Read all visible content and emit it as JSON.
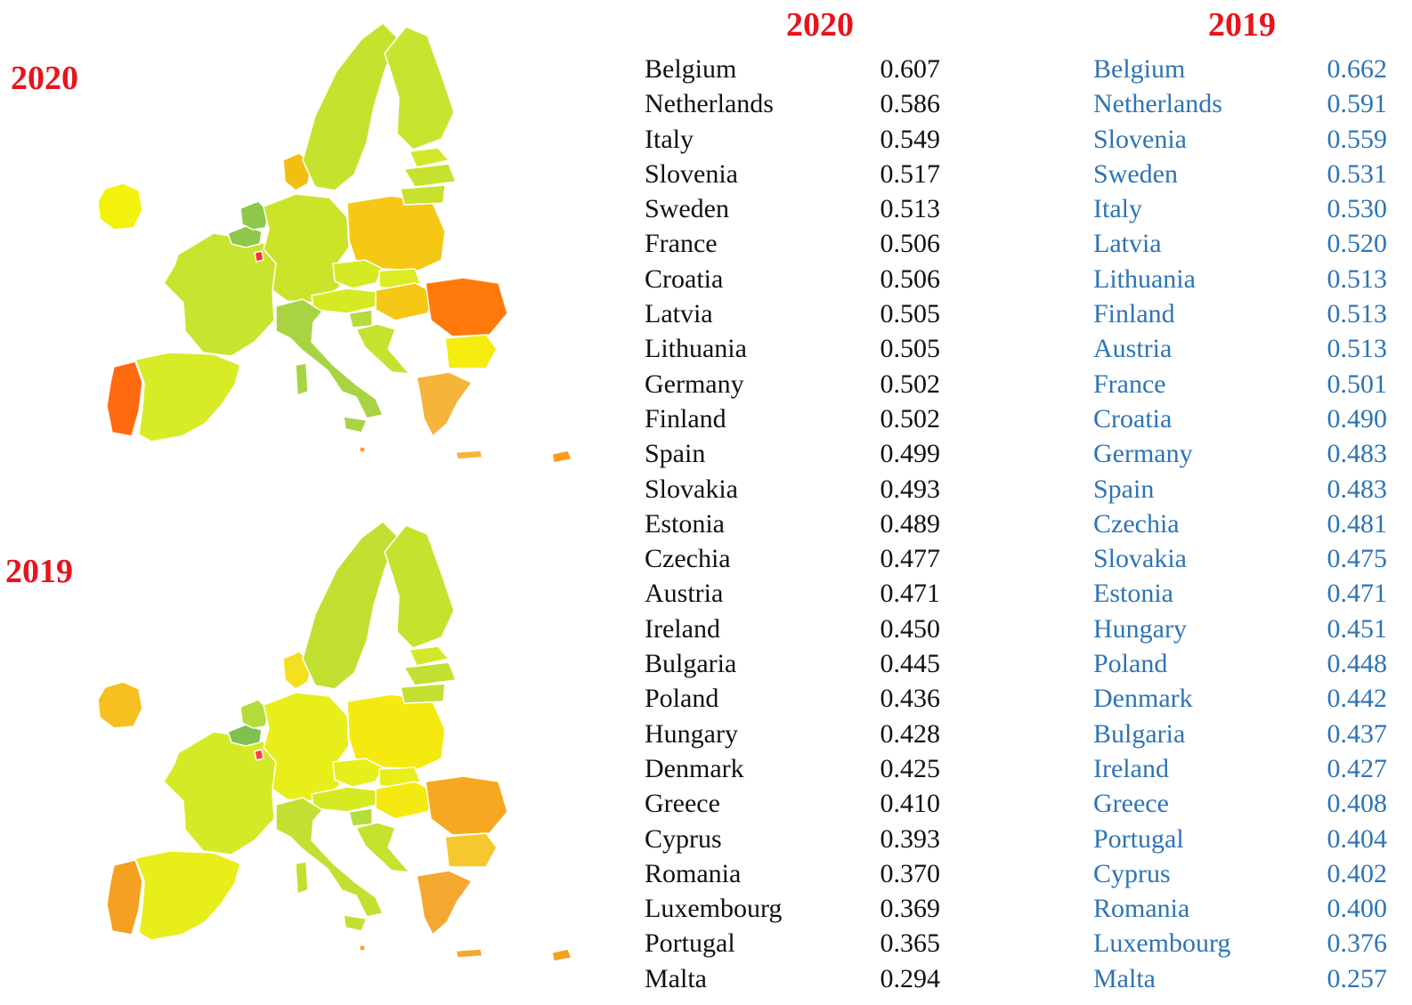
{
  "maps": [
    {
      "label": "2020",
      "colors": {
        "ireland": "#f2f20c",
        "portugal": "#ff6a10",
        "spain": "#d7ec26",
        "france": "#c8e42e",
        "belgium": "#8dc84a",
        "netherlands": "#8dc84a",
        "luxembourg": "#ff3030",
        "germany": "#cbe42a",
        "denmark": "#f2be10",
        "poland": "#f5c816",
        "czechia": "#d6ea24",
        "austria": "#d6ea24",
        "slovakia": "#dcec22",
        "hungary": "#f5c816",
        "slovenia": "#b4dc3c",
        "croatia": "#c6e22e",
        "italy": "#a8d444",
        "romania": "#ff7a0a",
        "bulgaria": "#f5ec10",
        "greece": "#f5b43a",
        "cyprus": "#ff9a20",
        "malta": "#ff9a20",
        "sweden": "#c6e22e",
        "finland": "#c8e42e",
        "estonia": "#d2e82a",
        "latvia": "#c6e22e",
        "lithuania": "#c6e22e"
      }
    },
    {
      "label": "2019",
      "colors": {
        "ireland": "#f5c020",
        "portugal": "#f5a020",
        "spain": "#e8ee1a",
        "france": "#d4ea26",
        "belgium": "#80c050",
        "netherlands": "#b4dc3c",
        "luxembourg": "#ff4040",
        "germany": "#e8ee1a",
        "denmark": "#f5e020",
        "poland": "#f5ea10",
        "czechia": "#e6ee1c",
        "austria": "#d6ea24",
        "slovakia": "#e6ee1c",
        "hungary": "#f5ea10",
        "slovenia": "#b4dc3c",
        "croatia": "#c6e22e",
        "italy": "#c2e032",
        "romania": "#f5a820",
        "bulgaria": "#f5c830",
        "greece": "#f5a830",
        "cyprus": "#f5a020",
        "malta": "#ff9a20",
        "sweden": "#c2e032",
        "finland": "#c6e22e",
        "estonia": "#d2e82a",
        "latvia": "#c2e032",
        "lithuania": "#c2e032"
      }
    }
  ],
  "table_2020": {
    "header": "2020",
    "rows": [
      {
        "country": "Belgium",
        "value": "0.607"
      },
      {
        "country": "Netherlands",
        "value": "0.586"
      },
      {
        "country": "Italy",
        "value": "0.549"
      },
      {
        "country": "Slovenia",
        "value": "0.517"
      },
      {
        "country": "Sweden",
        "value": "0.513"
      },
      {
        "country": "France",
        "value": "0.506"
      },
      {
        "country": "Croatia",
        "value": "0.506"
      },
      {
        "country": "Latvia",
        "value": "0.505"
      },
      {
        "country": "Lithuania",
        "value": "0.505"
      },
      {
        "country": "Germany",
        "value": "0.502"
      },
      {
        "country": "Finland",
        "value": "0.502"
      },
      {
        "country": "Spain",
        "value": "0.499"
      },
      {
        "country": "Slovakia",
        "value": "0.493"
      },
      {
        "country": "Estonia",
        "value": "0.489"
      },
      {
        "country": "Czechia",
        "value": "0.477"
      },
      {
        "country": "Austria",
        "value": "0.471"
      },
      {
        "country": "Ireland",
        "value": "0.450"
      },
      {
        "country": "Bulgaria",
        "value": "0.445"
      },
      {
        "country": "Poland",
        "value": "0.436"
      },
      {
        "country": "Hungary",
        "value": "0.428"
      },
      {
        "country": "Denmark",
        "value": "0.425"
      },
      {
        "country": "Greece",
        "value": "0.410"
      },
      {
        "country": "Cyprus",
        "value": "0.393"
      },
      {
        "country": "Romania",
        "value": "0.370"
      },
      {
        "country": "Luxembourg",
        "value": "0.369"
      },
      {
        "country": "Portugal",
        "value": "0.365"
      },
      {
        "country": "Malta",
        "value": "0.294"
      }
    ]
  },
  "table_2019": {
    "header": "2019",
    "rows": [
      {
        "country": "Belgium",
        "value": "0.662"
      },
      {
        "country": "Netherlands",
        "value": "0.591"
      },
      {
        "country": "Slovenia",
        "value": "0.559"
      },
      {
        "country": "Sweden",
        "value": "0.531"
      },
      {
        "country": "Italy",
        "value": "0.530"
      },
      {
        "country": "Latvia",
        "value": "0.520"
      },
      {
        "country": "Lithuania",
        "value": "0.513"
      },
      {
        "country": "Finland",
        "value": "0.513"
      },
      {
        "country": "Austria",
        "value": "0.513"
      },
      {
        "country": "France",
        "value": "0.501"
      },
      {
        "country": "Croatia",
        "value": "0.490"
      },
      {
        "country": "Germany",
        "value": "0.483"
      },
      {
        "country": "Spain",
        "value": "0.483"
      },
      {
        "country": "Czechia",
        "value": "0.481"
      },
      {
        "country": "Slovakia",
        "value": "0.475"
      },
      {
        "country": "Estonia",
        "value": "0.471"
      },
      {
        "country": "Hungary",
        "value": "0.451"
      },
      {
        "country": "Poland",
        "value": "0.448"
      },
      {
        "country": "Denmark",
        "value": "0.442"
      },
      {
        "country": "Bulgaria",
        "value": "0.437"
      },
      {
        "country": "Ireland",
        "value": "0.427"
      },
      {
        "country": "Greece",
        "value": "0.408"
      },
      {
        "country": "Portugal",
        "value": "0.404"
      },
      {
        "country": "Cyprus",
        "value": "0.402"
      },
      {
        "country": "Romania",
        "value": "0.400"
      },
      {
        "country": "Luxembourg",
        "value": "0.376"
      },
      {
        "country": "Malta",
        "value": "0.257"
      }
    ]
  }
}
